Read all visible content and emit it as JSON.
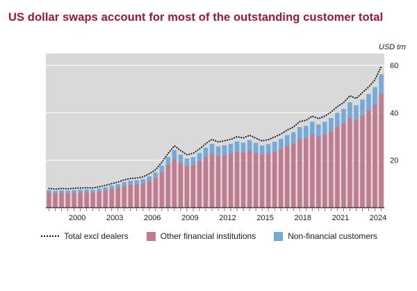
{
  "title": "US dollar swaps account for most of the outstanding customer total",
  "accent_color": "#a2143c",
  "panel_color": "#d9d9d9",
  "legend": [
    {
      "label": "Total excl dealers",
      "type": "dotted-line",
      "color": "#000000"
    },
    {
      "label": "Other financial institutions",
      "type": "box",
      "color": "#c17b8f"
    },
    {
      "label": "Non-financial customers",
      "type": "box",
      "color": "#74aad8"
    }
  ],
  "chart_data": {
    "type": "bar",
    "stacked": true,
    "title": "US dollar swaps account for most of the outstanding customer total",
    "ylabel": "USD trn",
    "xlabel": "",
    "grid": true,
    "legend_position": "bottom",
    "x_start_year": 1998,
    "frequency": "semiannual",
    "x_tick_labels": [
      "2000",
      "2003",
      "2006",
      "2009",
      "2012",
      "2015",
      "2018",
      "2021",
      "2024"
    ],
    "ylim": [
      0,
      65
    ],
    "yticks": [
      20,
      40,
      60
    ],
    "series": [
      {
        "name": "Other financial institutions",
        "render": "bar",
        "color": "#c17b8f",
        "values": [
          6.3,
          6.1,
          6.3,
          6.2,
          6.4,
          6.5,
          6.6,
          6.5,
          6.9,
          7.3,
          7.9,
          8.4,
          9.2,
          9.7,
          9.9,
          10.2,
          11.2,
          12.6,
          15.0,
          18.0,
          20.5,
          19.0,
          17.6,
          18.1,
          19.6,
          21.4,
          22.8,
          21.9,
          22.3,
          22.8,
          23.7,
          23.3,
          24.2,
          23.2,
          22.3,
          22.8,
          23.7,
          24.7,
          26.1,
          27.1,
          29.0,
          29.5,
          30.9,
          30.0,
          30.9,
          32.3,
          34.2,
          35.6,
          38.0,
          37.0,
          39.0,
          41.0,
          43.5,
          48.0
        ]
      },
      {
        "name": "Non-financial customers",
        "render": "bar",
        "color": "#74aad8",
        "values": [
          1.1,
          1.0,
          1.1,
          1.0,
          1.1,
          1.1,
          1.1,
          1.1,
          1.2,
          1.3,
          1.4,
          1.5,
          1.6,
          1.7,
          1.7,
          1.8,
          2.0,
          2.2,
          2.7,
          3.3,
          3.8,
          3.4,
          3.1,
          3.2,
          3.4,
          3.8,
          4.1,
          3.9,
          4.0,
          4.1,
          4.2,
          4.1,
          4.3,
          4.1,
          3.9,
          4.0,
          4.1,
          4.3,
          4.5,
          4.7,
          5.0,
          5.0,
          5.3,
          5.1,
          5.3,
          5.5,
          5.8,
          6.0,
          6.4,
          6.2,
          6.6,
          6.9,
          7.3,
          8.2
        ]
      },
      {
        "name": "Total excl dealers",
        "render": "line",
        "style": "dotted",
        "color": "#000000",
        "values": [
          8.1,
          7.8,
          8.1,
          7.9,
          8.2,
          8.3,
          8.4,
          8.3,
          8.8,
          9.4,
          10.1,
          10.8,
          11.7,
          12.3,
          12.5,
          13.0,
          14.3,
          16.0,
          19.1,
          22.9,
          26.1,
          24.1,
          22.3,
          22.9,
          24.7,
          27.0,
          28.8,
          27.7,
          28.2,
          28.8,
          29.9,
          29.4,
          30.5,
          29.3,
          28.1,
          28.7,
          29.8,
          31.0,
          32.7,
          34.0,
          36.3,
          36.8,
          38.6,
          37.5,
          38.6,
          40.3,
          42.6,
          44.3,
          47.2,
          46.0,
          48.5,
          50.9,
          53.9,
          59.5
        ]
      }
    ]
  }
}
